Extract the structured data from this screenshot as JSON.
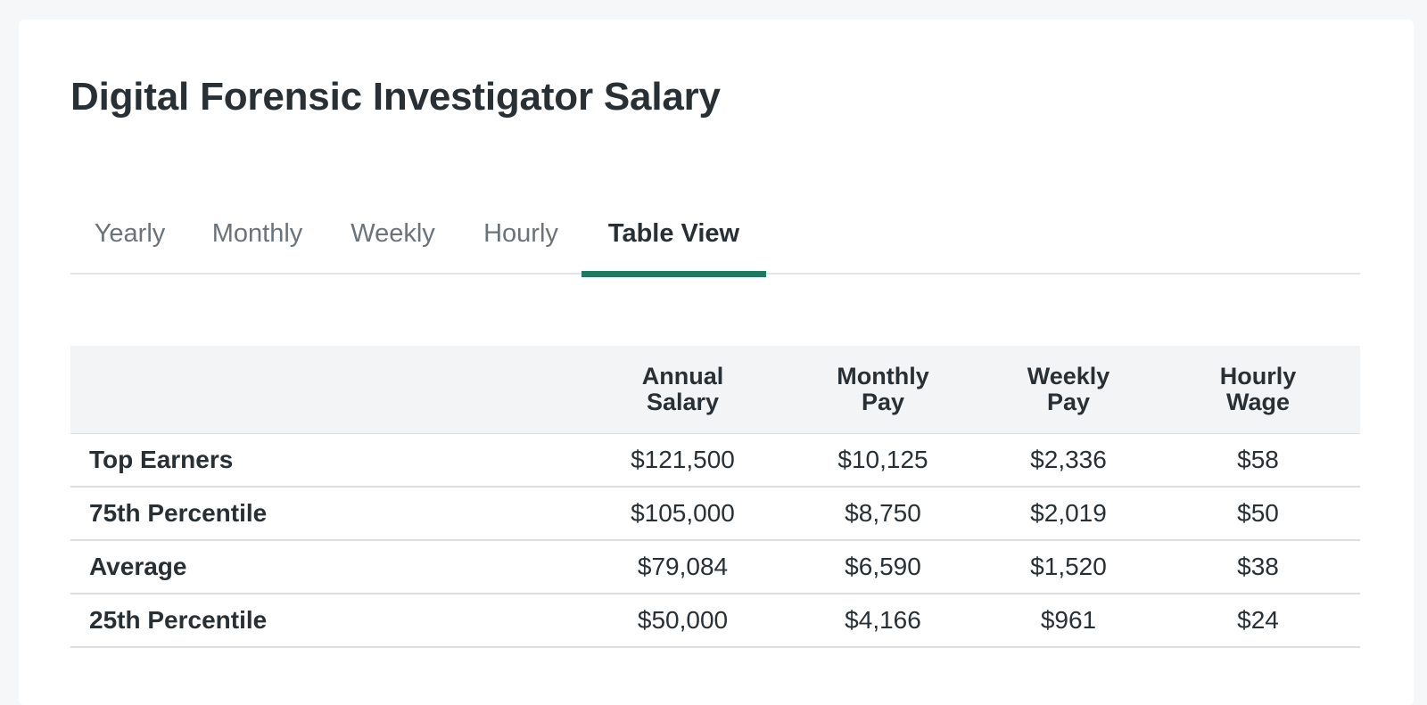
{
  "page": {
    "title": "Digital Forensic Investigator Salary"
  },
  "tabs": [
    {
      "label": "Yearly",
      "active": false
    },
    {
      "label": "Monthly",
      "active": false
    },
    {
      "label": "Weekly",
      "active": false
    },
    {
      "label": "Hourly",
      "active": false
    },
    {
      "label": "Table View",
      "active": true
    }
  ],
  "table": {
    "headers": [
      {
        "line1": "",
        "line2": ""
      },
      {
        "line1": "Annual",
        "line2": "Salary"
      },
      {
        "line1": "Monthly",
        "line2": "Pay"
      },
      {
        "line1": "Weekly",
        "line2": "Pay"
      },
      {
        "line1": "Hourly",
        "line2": "Wage"
      }
    ],
    "rows": [
      {
        "label": "Top Earners",
        "annual": "$121,500",
        "monthly": "$10,125",
        "weekly": "$2,336",
        "hourly": "$58"
      },
      {
        "label": "75th Percentile",
        "annual": "$105,000",
        "monthly": "$8,750",
        "weekly": "$2,019",
        "hourly": "$50"
      },
      {
        "label": "Average",
        "annual": "$79,084",
        "monthly": "$6,590",
        "weekly": "$1,520",
        "hourly": "$38"
      },
      {
        "label": "25th Percentile",
        "annual": "$50,000",
        "monthly": "$4,166",
        "weekly": "$961",
        "hourly": "$24"
      }
    ]
  },
  "colors": {
    "accent": "#1f7a62",
    "text": "#283035",
    "muted": "#6b737a",
    "header_bg": "#f3f4f6",
    "page_bg": "#f6f7f9"
  }
}
